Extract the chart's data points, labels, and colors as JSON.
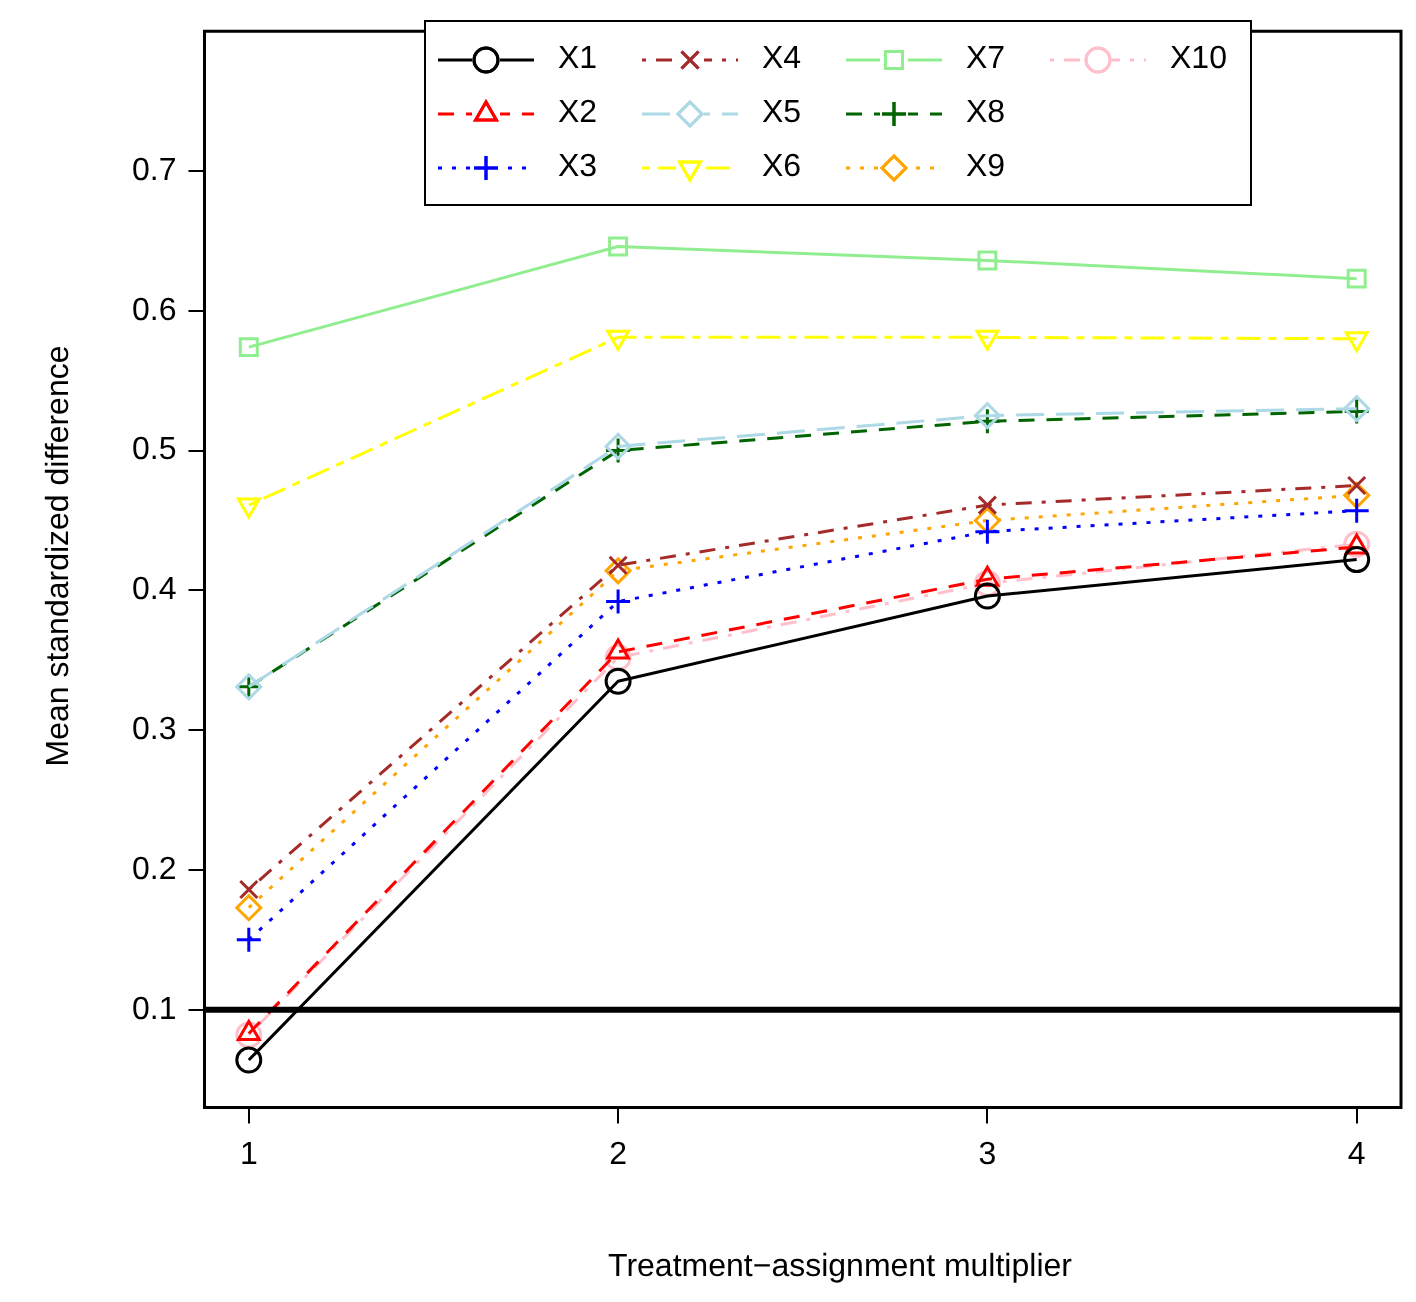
{
  "chart_data": {
    "type": "line",
    "xlabel": "Treatment−assignment multiplier",
    "ylabel": "Mean standardized difference",
    "x": [
      1,
      2,
      3,
      4
    ],
    "xlim": [
      0.88,
      4.12
    ],
    "xticks": [
      1,
      2,
      3,
      4
    ],
    "ylim": [
      0.03,
      0.8
    ],
    "yticks": [
      0.1,
      0.2,
      0.3,
      0.4,
      0.5,
      0.6,
      0.7
    ],
    "grid": false,
    "legend": "top",
    "series": [
      {
        "name": "X1",
        "color": "#000000",
        "marker": "circle",
        "line_style": "solid",
        "values": [
          0.064,
          0.335,
          0.396,
          0.422
        ]
      },
      {
        "name": "X2",
        "color": "#ff0000",
        "marker": "triangle",
        "line_style": "dashed",
        "values": [
          0.083,
          0.356,
          0.408,
          0.431
        ]
      },
      {
        "name": "X3",
        "color": "#0000ff",
        "marker": "cross",
        "line_style": "dotted",
        "values": [
          0.15,
          0.392,
          0.442,
          0.457
        ]
      },
      {
        "name": "X4",
        "color": "#a52a2a",
        "marker": "x",
        "line_style": "dashdot",
        "values": [
          0.186,
          0.418,
          0.461,
          0.475
        ]
      },
      {
        "name": "X5",
        "color": "#add8e6",
        "marker": "diamond",
        "line_style": "longdash",
        "values": [
          0.331,
          0.503,
          0.525,
          0.53
        ]
      },
      {
        "name": "X6",
        "color": "#ffff00",
        "marker": "triangle-down",
        "line_style": "twodash",
        "values": [
          0.461,
          0.581,
          0.581,
          0.58
        ]
      },
      {
        "name": "X7",
        "color": "#90ee90",
        "marker": "square",
        "line_style": "solid",
        "values": [
          0.574,
          0.646,
          0.636,
          0.623
        ]
      },
      {
        "name": "X8",
        "color": "#006400",
        "marker": "cross",
        "line_style": "dashed",
        "values": [
          0.331,
          0.5,
          0.521,
          0.528
        ]
      },
      {
        "name": "X9",
        "color": "#ffa500",
        "marker": "diamond",
        "line_style": "dotted",
        "values": [
          0.173,
          0.414,
          0.45,
          0.468
        ]
      },
      {
        "name": "X10",
        "color": "#ffc0cb",
        "marker": "circle",
        "line_style": "dashdot",
        "values": [
          0.082,
          0.352,
          0.405,
          0.433
        ]
      }
    ],
    "ref_lines": [
      {
        "axis": "y",
        "value": 0.1,
        "color": "#000000"
      }
    ]
  }
}
